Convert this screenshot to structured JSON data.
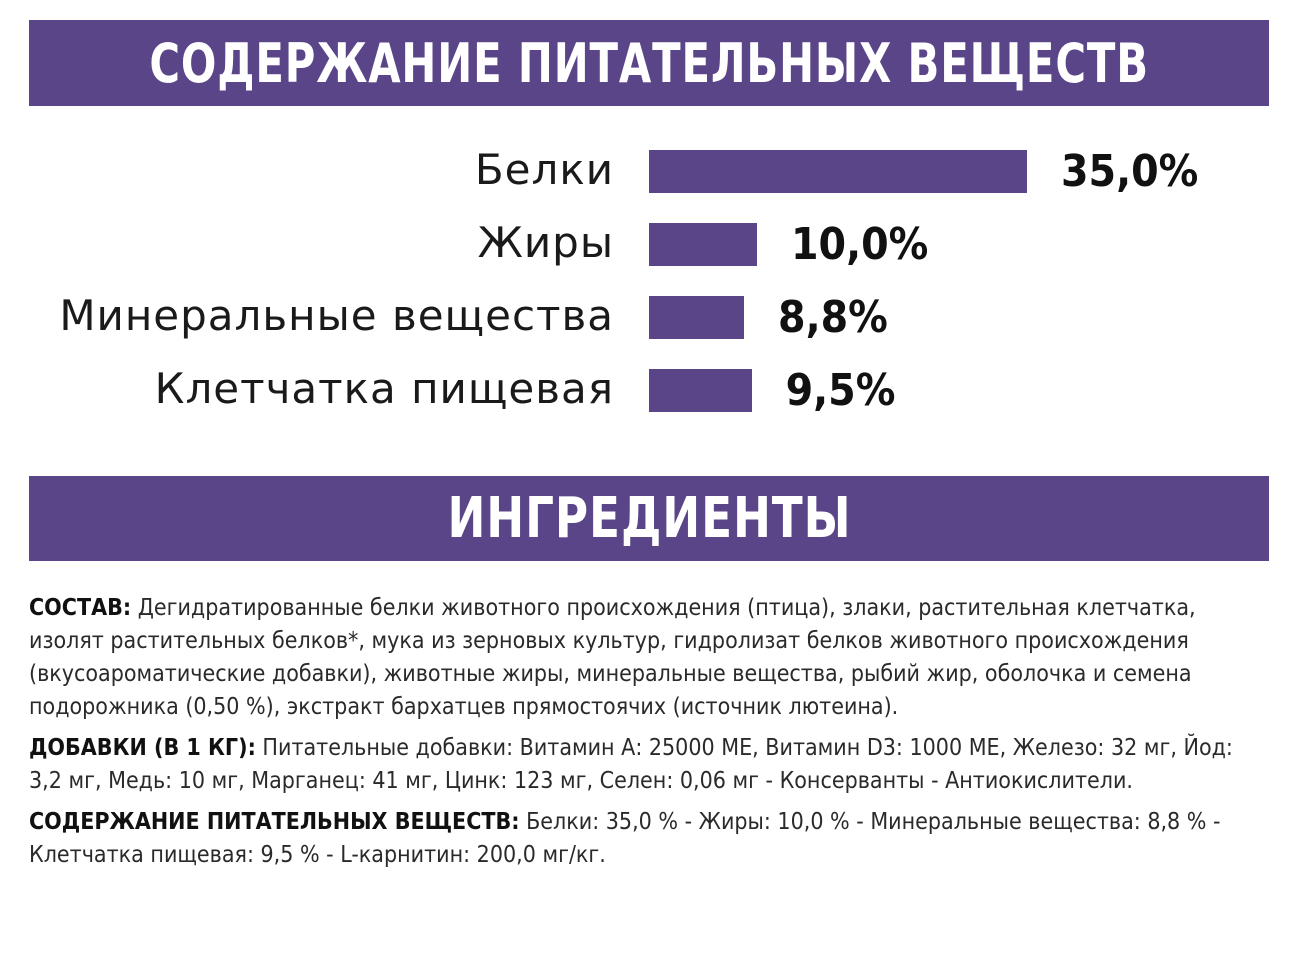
{
  "headers": {
    "nutrients": "СОДЕРЖАНИЕ ПИТАТЕЛЬНЫХ ВЕЩЕСТВ",
    "ingredients": "ИНГРЕДИЕНТЫ"
  },
  "colors": {
    "accent": "#5b4589"
  },
  "chart_data": {
    "type": "bar",
    "orientation": "horizontal",
    "title": "СОДЕРЖАНИЕ ПИТАТЕЛЬНЫХ ВЕЩЕСТВ",
    "categories": [
      "Белки",
      "Жиры",
      "Минеральные вещества",
      "Клетчатка пищевая"
    ],
    "values": [
      35.0,
      10.0,
      8.8,
      9.5
    ],
    "value_labels": [
      "35,0%",
      "10,0%",
      "8,8%",
      "9,5%"
    ],
    "unit": "%",
    "xlabel": "",
    "ylabel": "",
    "grid": false,
    "legend": "none"
  },
  "ingredients": {
    "composition": {
      "label": "СОСТАВ:",
      "text": " Дегидратированные белки животного происхождения (птица), злаки, растительная клетчатка, изолят растительных белков*, мука из зерновых культур, гидролизат белков животного происхождения (вкусоароматические добавки), животные жиры, минеральные вещества, рыбий жир, оболочка и семена подорожника (0,50 %), экстракт бархатцев прямостоячих (источник лютеина)."
    },
    "additives": {
      "label": "ДОБАВКИ (В 1 КГ):",
      "text": " Питательные добавки: Витамин А: 25000 МЕ, Витамин D3: 1000 МЕ, Железо: 32 мг, Йод: 3,2 мг, Медь: 10 мг, Марганец: 41 мг, Цинк: 123 мг, Селен: 0,06 мг - Консерванты - Антиокислители."
    },
    "nutrients": {
      "label": "СОДЕРЖАНИЕ ПИТАТЕЛЬНЫХ ВЕЩЕСТВ:",
      "text": " Белки: 35,0 % - Жиры: 10,0 % - Минеральные вещества: 8,8 % - Клетчатка пищевая: 9,5 % - L-карнитин: 200,0 мг/кг."
    }
  }
}
